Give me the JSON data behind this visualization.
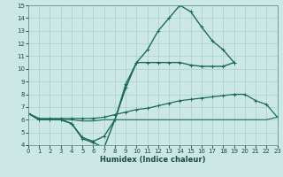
{
  "xlabel": "Humidex (Indice chaleur)",
  "xlim": [
    0,
    23
  ],
  "ylim": [
    4,
    15
  ],
  "xticks": [
    0,
    1,
    2,
    3,
    4,
    5,
    6,
    7,
    8,
    9,
    10,
    11,
    12,
    13,
    14,
    15,
    16,
    17,
    18,
    19,
    20,
    21,
    22,
    23
  ],
  "yticks": [
    4,
    5,
    6,
    7,
    8,
    9,
    10,
    11,
    12,
    13,
    14,
    15
  ],
  "bg_color": "#cce8e4",
  "grid_color": "#aacfcb",
  "lines": [
    {
      "x": [
        0,
        1,
        2,
        3,
        4,
        5,
        6,
        7,
        8,
        9,
        10,
        11,
        12,
        13,
        14,
        15,
        16,
        17,
        18,
        19
      ],
      "y": [
        6.5,
        6.0,
        6.0,
        6.0,
        5.7,
        4.5,
        4.2,
        3.8,
        6.0,
        8.8,
        10.5,
        11.5,
        13.0,
        14.0,
        15.0,
        14.5,
        13.3,
        12.2,
        11.5,
        10.5
      ],
      "color": "#1a6b5a",
      "lw": 1.0,
      "marker": "+"
    },
    {
      "x": [
        0,
        1,
        2,
        3,
        4,
        5,
        6,
        7,
        8,
        9,
        10,
        11,
        12,
        13,
        14,
        15,
        16,
        17,
        18,
        19,
        20,
        21,
        22,
        23
      ],
      "y": [
        6.5,
        6.0,
        6.0,
        6.0,
        5.7,
        4.6,
        4.3,
        4.7,
        6.0,
        8.5,
        10.5,
        10.5,
        10.5,
        10.5,
        10.5,
        10.3,
        10.2,
        10.2,
        10.2,
        10.5,
        null,
        null,
        null,
        null
      ],
      "color": "#1a6b5a",
      "lw": 1.0,
      "marker": "+"
    },
    {
      "x": [
        0,
        1,
        2,
        3,
        4,
        5,
        6,
        7,
        8,
        9,
        10,
        11,
        12,
        13,
        14,
        15,
        16,
        17,
        18,
        19,
        20,
        21,
        22,
        23
      ],
      "y": [
        6.5,
        6.1,
        6.1,
        6.1,
        6.1,
        6.1,
        6.1,
        6.2,
        6.4,
        6.6,
        6.8,
        6.9,
        7.1,
        7.3,
        7.5,
        7.6,
        7.7,
        7.8,
        7.9,
        8.0,
        8.0,
        7.5,
        7.2,
        6.2
      ],
      "color": "#1a6b5a",
      "lw": 0.9,
      "marker": "+"
    },
    {
      "x": [
        0,
        1,
        2,
        3,
        4,
        5,
        6,
        7,
        8,
        9,
        10,
        11,
        12,
        13,
        14,
        15,
        16,
        17,
        18,
        19,
        20,
        21,
        22,
        23
      ],
      "y": [
        6.5,
        6.0,
        6.0,
        6.0,
        6.0,
        5.9,
        5.9,
        6.0,
        6.0,
        6.0,
        6.0,
        6.0,
        6.0,
        6.0,
        6.0,
        6.0,
        6.0,
        6.0,
        6.0,
        6.0,
        6.0,
        6.0,
        6.0,
        6.2
      ],
      "color": "#1a6b5a",
      "lw": 0.8,
      "marker": null
    }
  ]
}
